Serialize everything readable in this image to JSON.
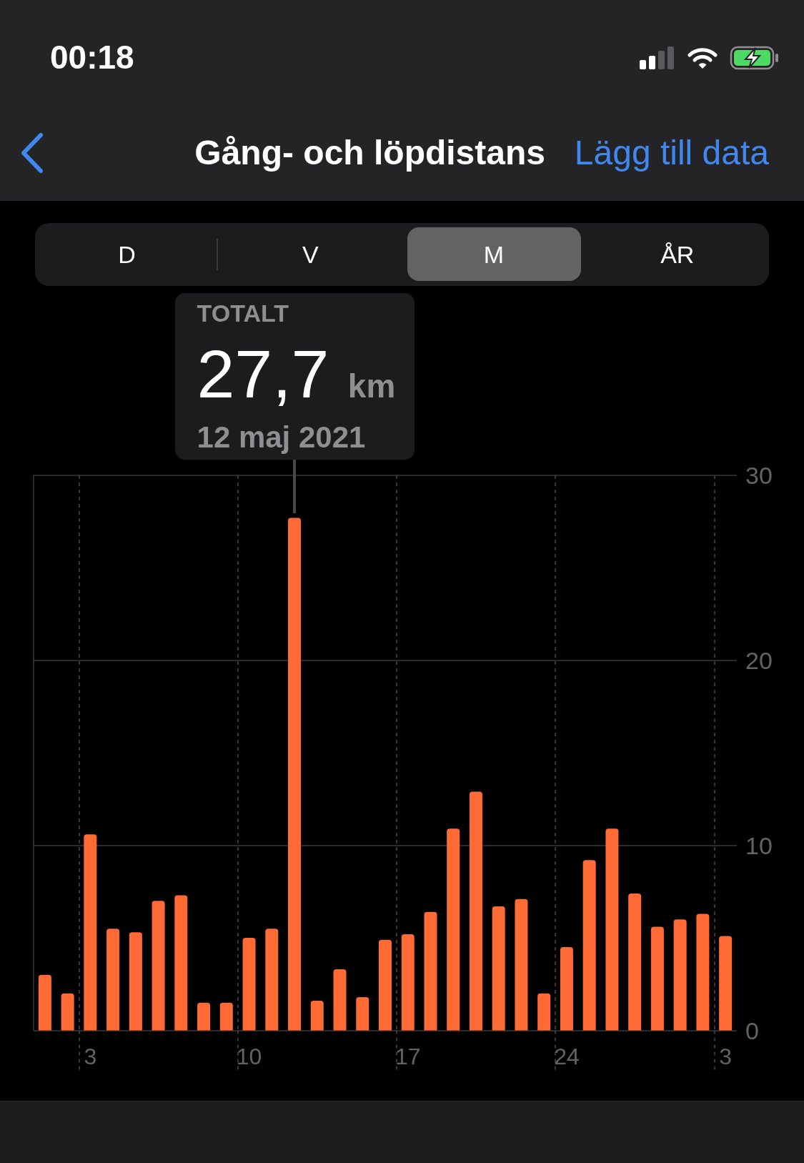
{
  "chart_data": {
    "type": "bar",
    "title": "Gång- och löpdistans",
    "categories": [
      null,
      null,
      "3",
      null,
      null,
      null,
      null,
      null,
      null,
      "10",
      null,
      null,
      null,
      null,
      null,
      null,
      "17",
      null,
      null,
      null,
      null,
      null,
      null,
      "24",
      null,
      null,
      null,
      null,
      null,
      null,
      "3"
    ],
    "values": [
      3.0,
      2.0,
      10.6,
      5.5,
      5.3,
      7.0,
      7.3,
      1.5,
      1.5,
      5.0,
      5.5,
      27.7,
      1.6,
      3.3,
      1.8,
      4.9,
      5.2,
      6.4,
      10.9,
      12.9,
      6.7,
      7.1,
      2.0,
      4.5,
      9.2,
      10.9,
      7.4,
      5.6,
      6.0,
      6.3,
      5.1
    ],
    "color": "#ff6a35",
    "ylim": [
      0,
      30
    ],
    "yticks": [
      0,
      10,
      20,
      30
    ],
    "grid": true,
    "annotations": [
      "00:18",
      "Lägg till data",
      "D",
      "V",
      "M",
      "ÅR",
      {
        "text": "TOTALT\n27,7 km\n12 maj 2021",
        "y": 27.7
      }
    ]
  }
}
